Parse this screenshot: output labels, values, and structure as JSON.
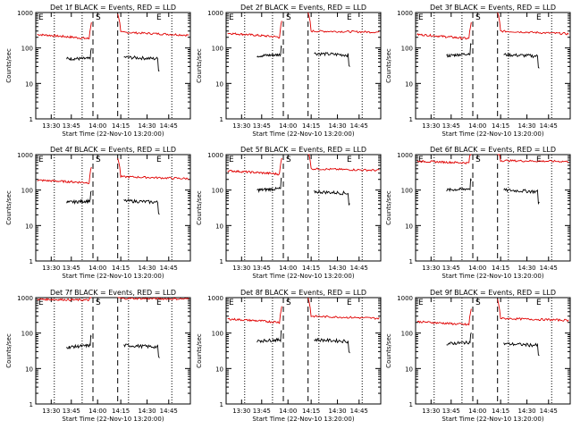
{
  "colors": {
    "events": "#000000",
    "lld": "#e00000",
    "axis": "#000000",
    "background": "#ffffff"
  },
  "xlabel": "Start Time (22-Nov-10 13:20:00)",
  "ylabel": "Counts/sec",
  "y_ticks": [
    "1",
    "10",
    "100",
    "1000"
  ],
  "x_ticks": [
    "13:30",
    "13:45",
    "14:00",
    "14:15",
    "14:30",
    "14:45"
  ],
  "markers": {
    "E": "E",
    "S": "S"
  },
  "chart_data": [
    {
      "type": "line",
      "title": "Det 1f BLACK = Events, RED = LLD",
      "ylim": [
        1,
        1000
      ],
      "y_scale": "log",
      "events": [
        50,
        50,
        55
      ],
      "lld": [
        240,
        180,
        280,
        230
      ],
      "series": [
        {
          "name": "BLACK = Events"
        },
        {
          "name": "RED = LLD"
        }
      ]
    },
    {
      "type": "line",
      "title": "Det 2f BLACK = Events, RED = LLD",
      "ylim": [
        1,
        1000
      ],
      "y_scale": "log",
      "events": [
        60,
        65,
        70
      ],
      "lld": [
        260,
        200,
        300,
        280
      ],
      "series": [
        {
          "name": "BLACK = Events"
        },
        {
          "name": "RED = LLD"
        }
      ]
    },
    {
      "type": "line",
      "title": "Det 3f BLACK = Events, RED = LLD",
      "ylim": [
        1,
        1000
      ],
      "y_scale": "log",
      "events": [
        60,
        70,
        65
      ],
      "lld": [
        240,
        180,
        300,
        250
      ],
      "series": [
        {
          "name": "BLACK = Events"
        },
        {
          "name": "RED = LLD"
        }
      ]
    },
    {
      "type": "line",
      "title": "Det 4f BLACK = Events, RED = LLD",
      "ylim": [
        1,
        1000
      ],
      "y_scale": "log",
      "events": [
        45,
        50,
        50
      ],
      "lld": [
        190,
        160,
        240,
        210
      ],
      "series": [
        {
          "name": "BLACK = Events"
        },
        {
          "name": "RED = LLD"
        }
      ]
    },
    {
      "type": "line",
      "title": "Det 5f BLACK = Events, RED = LLD",
      "ylim": [
        1,
        1000
      ],
      "y_scale": "log",
      "events": [
        100,
        110,
        90
      ],
      "lld": [
        350,
        280,
        400,
        360
      ],
      "series": [
        {
          "name": "BLACK = Events"
        },
        {
          "name": "RED = LLD"
        }
      ]
    },
    {
      "type": "line",
      "title": "Det 6f BLACK = Events, RED = LLD",
      "ylim": [
        1,
        1000
      ],
      "y_scale": "log",
      "events": [
        100,
        110,
        100
      ],
      "lld": [
        650,
        580,
        680,
        640
      ],
      "series": [
        {
          "name": "BLACK = Events"
        },
        {
          "name": "RED = LLD"
        }
      ]
    },
    {
      "type": "line",
      "title": "Det 7f BLACK = Events, RED = LLD",
      "ylim": [
        1,
        1000
      ],
      "y_scale": "log",
      "events": [
        40,
        45,
        45
      ],
      "lld": [
        900,
        850,
        950,
        920
      ],
      "series": [
        {
          "name": "BLACK = Events"
        },
        {
          "name": "RED = LLD"
        }
      ]
    },
    {
      "type": "line",
      "title": "Det 8f BLACK = Events, RED = LLD",
      "ylim": [
        1,
        1000
      ],
      "y_scale": "log",
      "events": [
        60,
        65,
        65
      ],
      "lld": [
        250,
        200,
        300,
        260
      ],
      "series": [
        {
          "name": "BLACK = Events"
        },
        {
          "name": "RED = LLD"
        }
      ]
    },
    {
      "type": "line",
      "title": "Det 9f BLACK = Events, RED = LLD",
      "ylim": [
        1,
        1000
      ],
      "y_scale": "log",
      "events": [
        50,
        55,
        50
      ],
      "lld": [
        210,
        170,
        260,
        230
      ],
      "series": [
        {
          "name": "BLACK = Events"
        },
        {
          "name": "RED = LLD"
        }
      ]
    }
  ]
}
